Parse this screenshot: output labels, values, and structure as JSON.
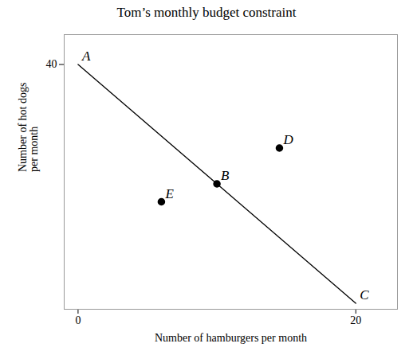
{
  "chart_data": {
    "type": "line",
    "title": "Tom’s monthly budget constraint",
    "x_label": "Number of hamburgers per month",
    "y_label": "Number of hot dogs\nper month",
    "series": [
      {
        "type": "line",
        "x": [
          0,
          20
        ],
        "values": [
          40,
          0
        ],
        "color": "#000000"
      },
      {
        "type": "scatter",
        "x": [
          10,
          14.5,
          6
        ],
        "values": [
          20,
          26,
          17
        ],
        "color": "#000000"
      }
    ],
    "annotations": [
      {
        "text": "A",
        "x": 0,
        "y": 40
      },
      {
        "text": "B",
        "x": 10,
        "y": 20
      },
      {
        "text": "C",
        "x": 20,
        "y": 0
      },
      {
        "text": "D",
        "x": 14.5,
        "y": 26
      },
      {
        "text": "E",
        "x": 6,
        "y": 17
      }
    ],
    "xlim": [
      -1,
      23
    ],
    "ylim": [
      -1,
      45
    ],
    "xticks": [
      0,
      20
    ],
    "yticks": [
      40
    ],
    "grid": false
  }
}
